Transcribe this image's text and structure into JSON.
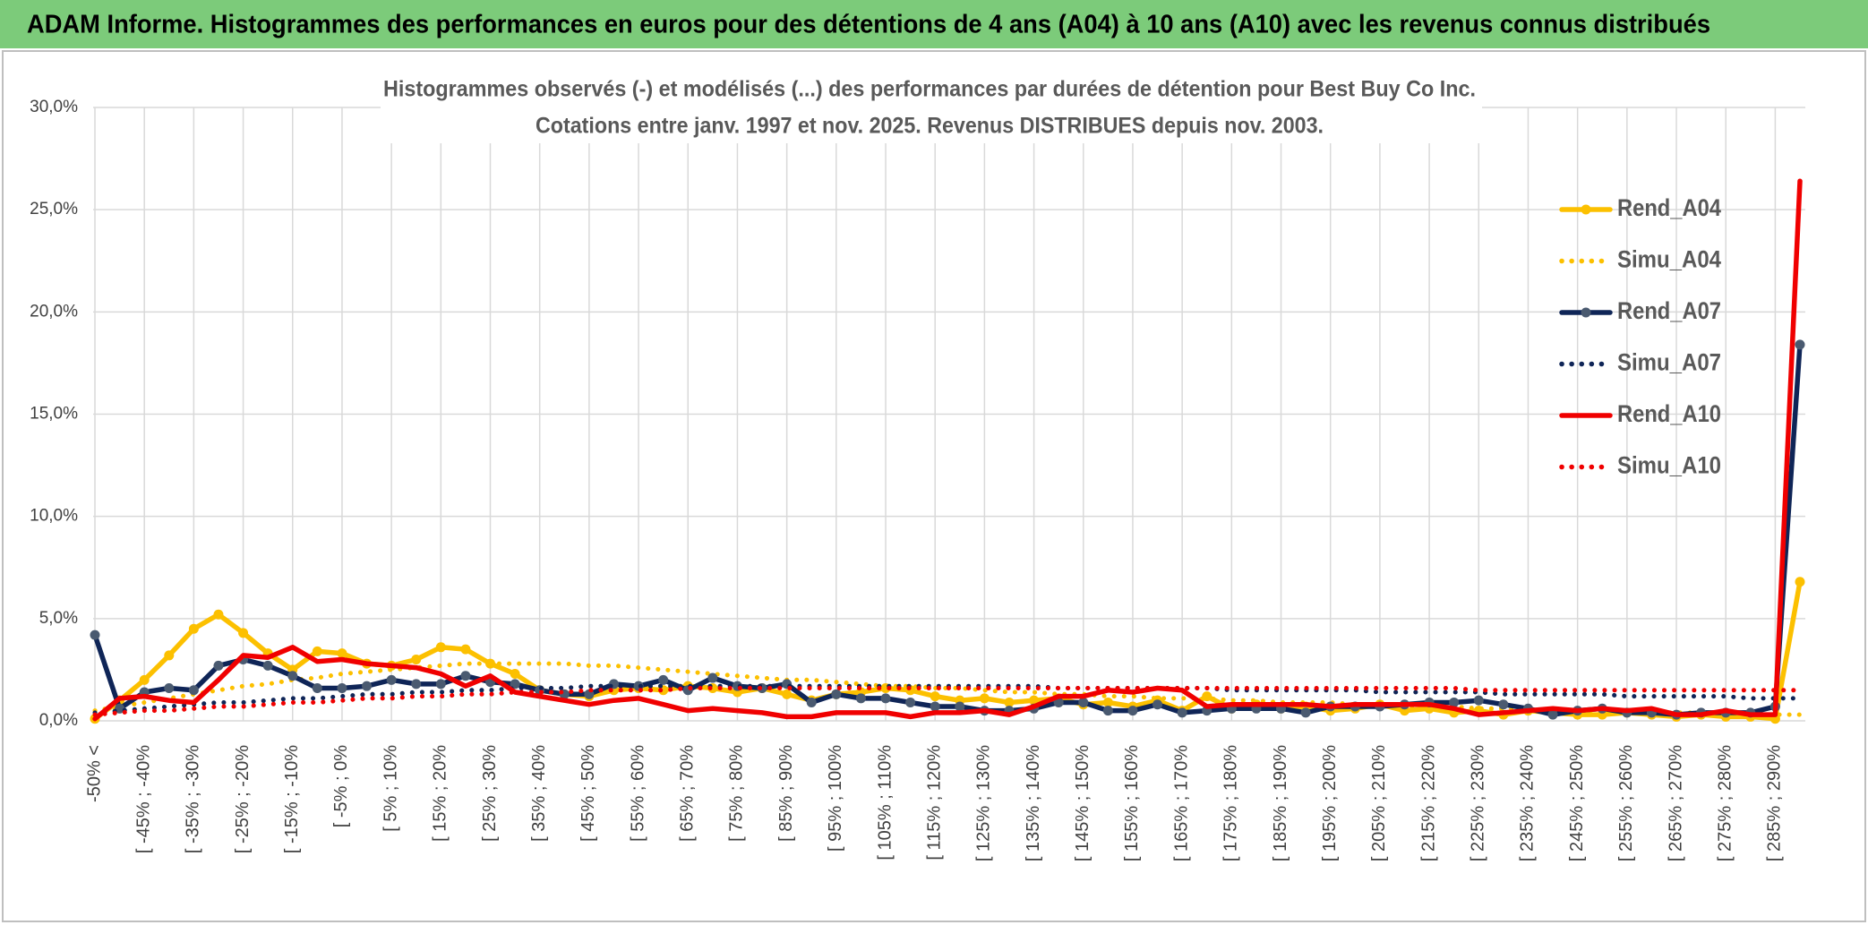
{
  "header": {
    "title": "ADAM Informe. Histogrammes des performances en euros pour des détentions de 4 ans (A04) à 10 ans (A10) avec les revenus connus distribués"
  },
  "chart_data": {
    "type": "line",
    "title": "Histogrammes observés (-) et modélisés (...) des performances par durées de détention pour Best Buy Co Inc.",
    "subtitle": "Cotations entre janv. 1997 et nov. 2025. Revenus DISTRIBUES depuis nov. 2003.",
    "categories": [
      "-50% <",
      null,
      "[ -45% ; -40%",
      null,
      "[ -35% ; -30%",
      null,
      "[ -25% ; -20%",
      null,
      "[ -15% ; -10%",
      null,
      "[ -5% ; 0%",
      null,
      "[ 5% ; 10%",
      null,
      "[ 15% ; 20%",
      null,
      "[ 25% ; 30%",
      null,
      "[ 35% ; 40%",
      null,
      "[ 45% ; 50%",
      null,
      "[ 55% ; 60%",
      null,
      "[ 65% ; 70%",
      null,
      "[ 75% ; 80%",
      null,
      "[ 85% ; 90%",
      null,
      "[ 95% ; 100%",
      null,
      "[ 105% ; 110%",
      null,
      "[ 115% ; 120%",
      null,
      "[ 125% ; 130%",
      null,
      "[ 135% ; 140%",
      null,
      "[ 145% ; 150%",
      null,
      "[ 155% ; 160%",
      null,
      "[ 165% ; 170%",
      null,
      "[ 175% ; 180%",
      null,
      "[ 185% ; 190%",
      null,
      "[ 195% ; 200%",
      null,
      "[ 205% ; 210%",
      null,
      "[ 215% ; 220%",
      null,
      "[ 225% ; 230%",
      null,
      "[ 235% ; 240%",
      null,
      "[ 245% ; 250%",
      null,
      "[ 255% ; 260%",
      null,
      "[ 265% ; 270%",
      null,
      "[ 275% ; 280%",
      null,
      "[ 285% ; 290%",
      null
    ],
    "ylim": [
      0,
      30
    ],
    "yticks": [
      {
        "value": 0,
        "label": "0,0%"
      },
      {
        "value": 5,
        "label": "5,0%"
      },
      {
        "value": 10,
        "label": "10,0%"
      },
      {
        "value": 15,
        "label": "15,0%"
      },
      {
        "value": 20,
        "label": "20,0%"
      },
      {
        "value": 25,
        "label": "25,0%"
      },
      {
        "value": 30,
        "label": "30,0%"
      }
    ],
    "grid": true,
    "legend": "right",
    "series": [
      {
        "name": "Rend_A04",
        "color": "#fcc000",
        "dash": "solid",
        "marker": "circle",
        "values": [
          0.1,
          1.0,
          2.0,
          3.2,
          4.5,
          5.2,
          4.3,
          3.3,
          2.5,
          3.4,
          3.3,
          2.8,
          2.7,
          3.0,
          3.6,
          3.5,
          2.8,
          2.3,
          1.5,
          1.3,
          1.2,
          1.5,
          1.6,
          1.5,
          1.7,
          1.6,
          1.4,
          1.6,
          1.3,
          1.0,
          1.3,
          1.4,
          1.6,
          1.5,
          1.2,
          1.0,
          1.1,
          0.9,
          1.0,
          1.1,
          0.8,
          0.9,
          0.7,
          1.0,
          0.5,
          1.2,
          0.6,
          0.8,
          0.6,
          0.7,
          0.5,
          0.6,
          0.8,
          0.5,
          0.6,
          0.4,
          0.5,
          0.3,
          0.5,
          0.4,
          0.3,
          0.3,
          0.4,
          0.3,
          0.2,
          0.3,
          0.2,
          0.2,
          0.1,
          6.8
        ]
      },
      {
        "name": "Simu_A04",
        "color": "#fcc000",
        "dash": "dotted",
        "marker": "none",
        "values": [
          0.5,
          0.7,
          0.9,
          1.1,
          1.3,
          1.5,
          1.7,
          1.8,
          2.0,
          2.1,
          2.3,
          2.4,
          2.5,
          2.6,
          2.7,
          2.8,
          2.8,
          2.8,
          2.8,
          2.8,
          2.7,
          2.7,
          2.6,
          2.5,
          2.4,
          2.3,
          2.2,
          2.1,
          2.0,
          2.0,
          1.9,
          1.8,
          1.7,
          1.7,
          1.6,
          1.6,
          1.5,
          1.4,
          1.4,
          1.3,
          1.3,
          1.2,
          1.2,
          1.1,
          1.1,
          1.1,
          1.0,
          1.0,
          0.9,
          0.9,
          0.9,
          0.8,
          0.8,
          0.7,
          0.7,
          0.7,
          0.6,
          0.6,
          0.6,
          0.5,
          0.5,
          0.5,
          0.5,
          0.4,
          0.4,
          0.4,
          0.4,
          0.3,
          0.3,
          0.3
        ]
      },
      {
        "name": "Rend_A07",
        "color": "#0f2557",
        "dash": "solid",
        "marker": "circle",
        "values": [
          4.2,
          0.6,
          1.4,
          1.6,
          1.5,
          2.7,
          3.0,
          2.7,
          2.2,
          1.6,
          1.6,
          1.7,
          2.0,
          1.8,
          1.8,
          2.2,
          1.9,
          1.8,
          1.5,
          1.3,
          1.3,
          1.8,
          1.7,
          2.0,
          1.5,
          2.1,
          1.7,
          1.6,
          1.8,
          0.9,
          1.3,
          1.1,
          1.1,
          0.9,
          0.7,
          0.7,
          0.5,
          0.5,
          0.6,
          0.9,
          0.9,
          0.5,
          0.5,
          0.8,
          0.4,
          0.5,
          0.6,
          0.6,
          0.6,
          0.4,
          0.7,
          0.7,
          0.7,
          0.8,
          0.9,
          0.9,
          1.0,
          0.8,
          0.6,
          0.3,
          0.5,
          0.6,
          0.4,
          0.4,
          0.3,
          0.4,
          0.4,
          0.4,
          0.7,
          18.4
        ]
      },
      {
        "name": "Simu_A07",
        "color": "#0f2557",
        "dash": "dotted",
        "marker": "none",
        "values": [
          0.4,
          0.5,
          0.6,
          0.7,
          0.8,
          0.9,
          0.9,
          1.0,
          1.1,
          1.1,
          1.2,
          1.3,
          1.3,
          1.4,
          1.4,
          1.5,
          1.5,
          1.6,
          1.6,
          1.6,
          1.7,
          1.7,
          1.7,
          1.7,
          1.7,
          1.7,
          1.7,
          1.7,
          1.7,
          1.7,
          1.7,
          1.7,
          1.7,
          1.7,
          1.7,
          1.7,
          1.7,
          1.7,
          1.7,
          1.6,
          1.6,
          1.6,
          1.6,
          1.6,
          1.6,
          1.6,
          1.5,
          1.5,
          1.5,
          1.5,
          1.5,
          1.5,
          1.4,
          1.4,
          1.4,
          1.4,
          1.4,
          1.3,
          1.3,
          1.3,
          1.3,
          1.3,
          1.2,
          1.2,
          1.2,
          1.2,
          1.2,
          1.1,
          1.1,
          1.1
        ]
      },
      {
        "name": "Rend_A10",
        "color": "#f00000",
        "dash": "solid",
        "marker": "none",
        "values": [
          0.1,
          1.1,
          1.2,
          1.0,
          0.9,
          2.0,
          3.2,
          3.1,
          3.6,
          2.9,
          3.0,
          2.8,
          2.7,
          2.6,
          2.3,
          1.7,
          2.2,
          1.4,
          1.2,
          1.0,
          0.8,
          1.0,
          1.1,
          0.8,
          0.5,
          0.6,
          0.5,
          0.4,
          0.2,
          0.2,
          0.4,
          0.4,
          0.4,
          0.2,
          0.4,
          0.4,
          0.5,
          0.3,
          0.7,
          1.2,
          1.2,
          1.5,
          1.4,
          1.6,
          1.5,
          0.7,
          0.8,
          0.8,
          0.8,
          0.8,
          0.7,
          0.8,
          0.8,
          0.8,
          0.8,
          0.6,
          0.3,
          0.4,
          0.5,
          0.6,
          0.5,
          0.6,
          0.5,
          0.6,
          0.3,
          0.3,
          0.5,
          0.3,
          0.3,
          26.4
        ]
      },
      {
        "name": "Simu_A10",
        "color": "#f00000",
        "dash": "dotted",
        "marker": "none",
        "values": [
          0.3,
          0.4,
          0.5,
          0.5,
          0.6,
          0.7,
          0.7,
          0.8,
          0.9,
          0.9,
          1.0,
          1.1,
          1.1,
          1.2,
          1.2,
          1.3,
          1.3,
          1.4,
          1.4,
          1.4,
          1.5,
          1.5,
          1.5,
          1.5,
          1.6,
          1.6,
          1.6,
          1.6,
          1.6,
          1.6,
          1.6,
          1.6,
          1.6,
          1.6,
          1.6,
          1.6,
          1.6,
          1.6,
          1.6,
          1.6,
          1.6,
          1.6,
          1.6,
          1.6,
          1.6,
          1.6,
          1.6,
          1.6,
          1.6,
          1.6,
          1.6,
          1.6,
          1.6,
          1.6,
          1.6,
          1.6,
          1.5,
          1.5,
          1.5,
          1.5,
          1.5,
          1.5,
          1.5,
          1.5,
          1.5,
          1.5,
          1.5,
          1.5,
          1.5,
          1.5
        ]
      }
    ]
  }
}
